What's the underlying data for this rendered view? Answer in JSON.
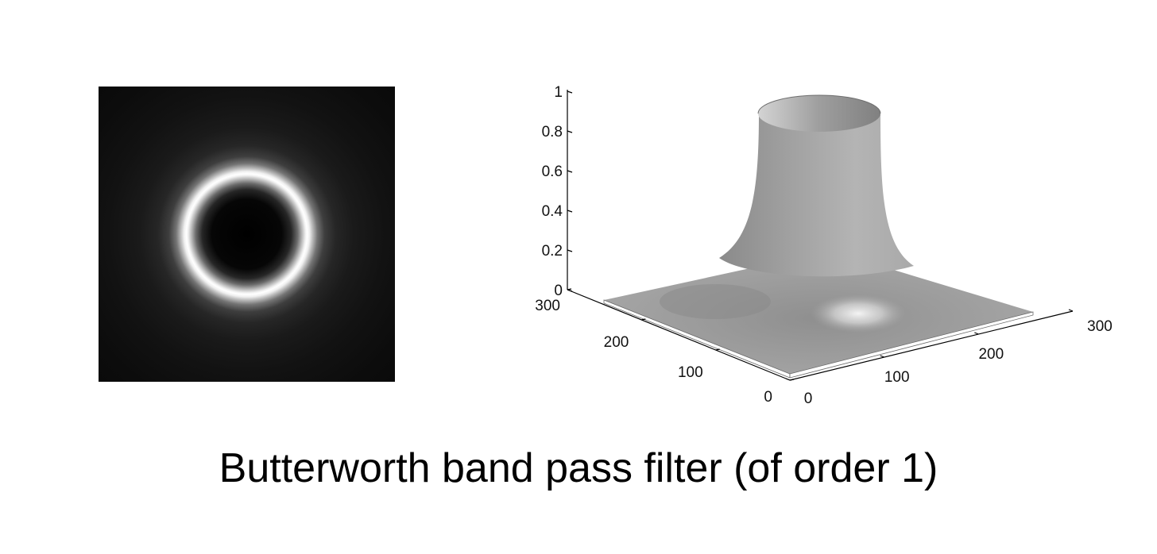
{
  "caption": "Butterworth band pass filter (of order 1)",
  "image_panel": {
    "colormap": "gray",
    "background_color": "#000000",
    "ring_color": "#ffffff"
  },
  "surface_plot": {
    "z_ticks": [
      "0",
      "0.2",
      "0.4",
      "0.6",
      "0.8",
      "1"
    ],
    "y_ticks": [
      "0",
      "100",
      "200",
      "300"
    ],
    "x_ticks": [
      "0",
      "100",
      "200",
      "300"
    ],
    "surface_color": "#a6a6a6"
  }
}
